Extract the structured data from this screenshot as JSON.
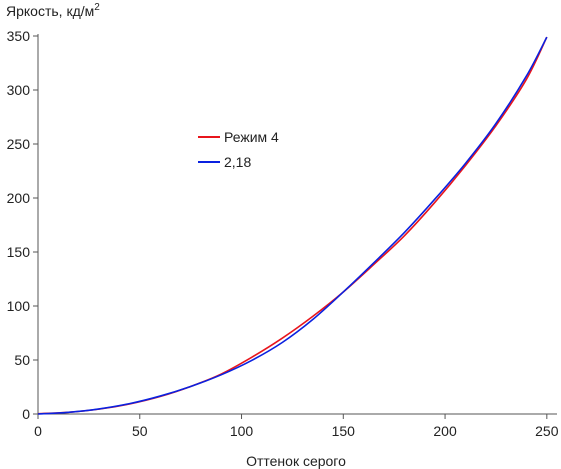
{
  "chart_data": {
    "type": "line",
    "ylabel": "Яркость, кд/м",
    "ylabel_sup": "2",
    "xlabel": "Оттенок серого",
    "xlim": [
      0,
      255
    ],
    "ylim": [
      0,
      350
    ],
    "x_ticks": [
      0,
      50,
      100,
      150,
      200,
      250
    ],
    "y_ticks": [
      0,
      50,
      100,
      150,
      200,
      250,
      300,
      350
    ],
    "grid": false,
    "legend_position": "center-left",
    "series": [
      {
        "name": "Режим 4",
        "color": "#e8151c",
        "x": [
          0,
          15,
          30,
          45,
          60,
          75,
          90,
          105,
          120,
          135,
          150,
          165,
          180,
          195,
          210,
          225,
          240,
          250
        ],
        "y": [
          0.3,
          1.6,
          4.5,
          9.3,
          16.2,
          25.5,
          37.0,
          52.5,
          70.2,
          90.4,
          113.0,
          138.5,
          165.0,
          196.0,
          230.0,
          267.0,
          310.0,
          349.0
        ]
      },
      {
        "name": "2,18",
        "color": "#0a21e0",
        "x": [
          0,
          15,
          30,
          45,
          60,
          75,
          90,
          105,
          120,
          135,
          150,
          165,
          180,
          195,
          210,
          225,
          240,
          250
        ],
        "y": [
          0,
          1.6,
          4.7,
          9.6,
          16.6,
          25.5,
          36.3,
          49.6,
          66.2,
          87.5,
          113.0,
          140.0,
          168.0,
          199.0,
          232.0,
          269.0,
          313.0,
          349.0
        ]
      }
    ]
  }
}
